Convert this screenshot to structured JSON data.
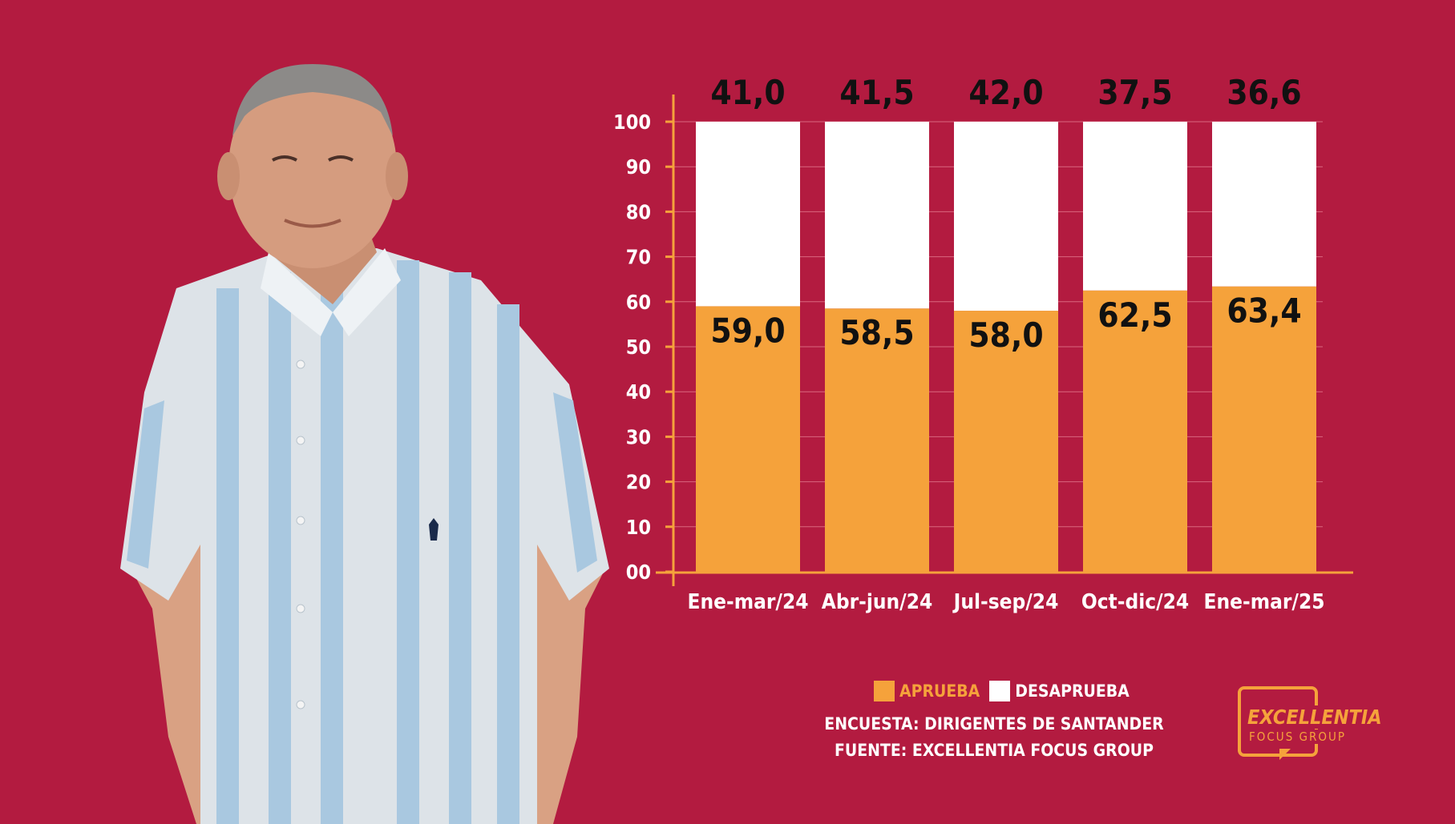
{
  "chart_data": {
    "type": "bar",
    "stacked": true,
    "categories": [
      "Ene-mar/24",
      "Abr-jun/24",
      "Jul-sep/24",
      "Oct-dic/24",
      "Ene-mar/25"
    ],
    "series": [
      {
        "name": "APRUEBA",
        "color": "#f5a23b",
        "values": [
          59.0,
          58.5,
          58.0,
          62.5,
          63.4
        ],
        "labels": [
          "59,0",
          "58,5",
          "58,0",
          "62,5",
          "63,4"
        ]
      },
      {
        "name": "DESAPRUEBA",
        "color": "#ffffff",
        "values": [
          41.0,
          41.5,
          42.0,
          37.5,
          36.6
        ],
        "labels": [
          "41,0",
          "41,5",
          "42,0",
          "37,5",
          "36,6"
        ]
      }
    ],
    "yticks": [
      "00",
      "10",
      "20",
      "30",
      "40",
      "50",
      "60",
      "70",
      "80",
      "90",
      "100"
    ],
    "ylim": [
      0,
      100
    ],
    "grid": true,
    "legend_position": "bottom-center"
  },
  "legend": {
    "approve": "APRUEBA",
    "disapprove": "DESAPRUEBA"
  },
  "source": {
    "survey": "ENCUESTA: DIRIGENTES DE SANTANDER",
    "source": "FUENTE: EXCELLENTIA FOCUS GROUP"
  },
  "logo": {
    "line1": "EXCELLENTIA",
    "line2": "FOCUS GROUP"
  },
  "colors": {
    "background": "#b31b40",
    "accent": "#f5a23b",
    "axis": "#f5a23b"
  }
}
